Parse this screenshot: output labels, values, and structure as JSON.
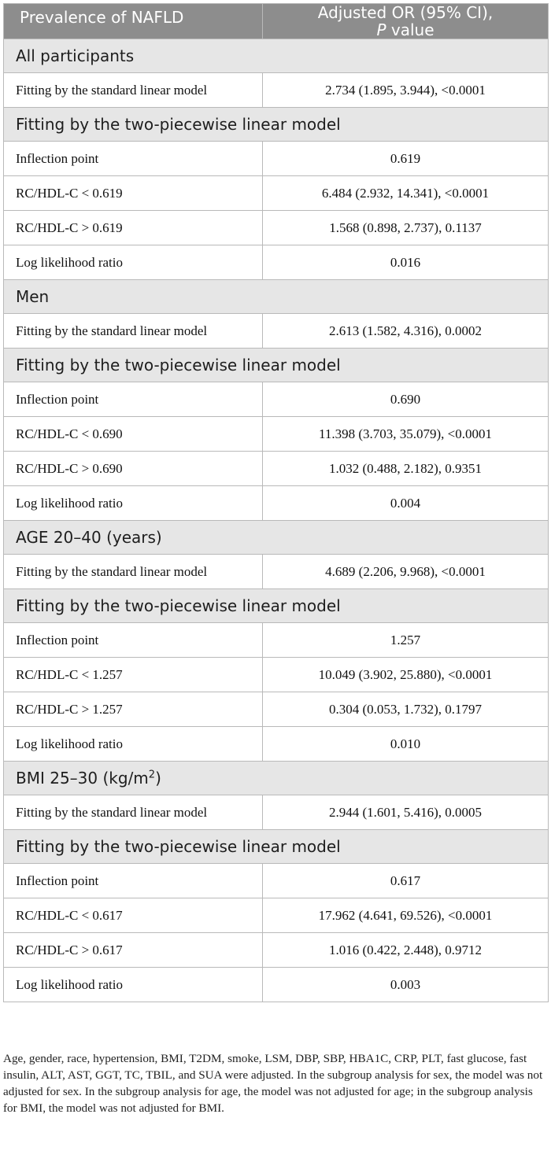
{
  "header": {
    "col1": "Prevalence of NAFLD",
    "col2_line1": "Adjusted OR (95% CI),",
    "col2_p": "P",
    "col2_value": " value"
  },
  "sections": [
    {
      "title": "All participants",
      "rows": [
        {
          "label": "Fitting by the standard linear model",
          "value": "2.734 (1.895, 3.944), <0.0001"
        }
      ]
    },
    {
      "title": "Fitting by the two-piecewise linear model",
      "rows": [
        {
          "label": "Inflection point",
          "value": "0.619"
        },
        {
          "label": "RC/HDL-C < 0.619",
          "value": "6.484 (2.932, 14.341), <0.0001"
        },
        {
          "label": "RC/HDL-C > 0.619",
          "value": "1.568 (0.898, 2.737), 0.1137"
        },
        {
          "label": "Log likelihood ratio",
          "value": "0.016"
        }
      ]
    },
    {
      "title": "Men",
      "rows": [
        {
          "label": "Fitting by the standard linear model",
          "value": "2.613 (1.582, 4.316), 0.0002"
        }
      ]
    },
    {
      "title": "Fitting by the two-piecewise linear model",
      "rows": [
        {
          "label": "Inflection point",
          "value": "0.690"
        },
        {
          "label": "RC/HDL-C < 0.690",
          "value": "11.398 (3.703, 35.079), <0.0001"
        },
        {
          "label": "RC/HDL-C > 0.690",
          "value": "1.032 (0.488, 2.182), 0.9351"
        },
        {
          "label": "Log likelihood ratio",
          "value": "0.004"
        }
      ]
    },
    {
      "title": "AGE 20–40 (years)",
      "rows": [
        {
          "label": "Fitting by the standard linear model",
          "value": "4.689 (2.206, 9.968), <0.0001"
        }
      ]
    },
    {
      "title": "Fitting by the two-piecewise linear model",
      "rows": [
        {
          "label": "Inflection point",
          "value": "1.257"
        },
        {
          "label": "RC/HDL-C < 1.257",
          "value": "10.049 (3.902, 25.880), <0.0001"
        },
        {
          "label": "RC/HDL-C > 1.257",
          "value": "0.304 (0.053, 1.732), 0.1797"
        },
        {
          "label": "Log likelihood ratio",
          "value": "0.010"
        }
      ]
    },
    {
      "title": "BMI 25–30 (kg/m",
      "title_sup": "2",
      "title_tail": ")",
      "rows": [
        {
          "label": "Fitting by the standard linear model",
          "value": "2.944 (1.601, 5.416), 0.0005"
        }
      ]
    },
    {
      "title": "Fitting by the two-piecewise linear model",
      "rows": [
        {
          "label": "Inflection point",
          "value": "0.617"
        },
        {
          "label": "RC/HDL-C < 0.617",
          "value": "17.962 (4.641, 69.526), <0.0001"
        },
        {
          "label": "RC/HDL-C > 0.617",
          "value": "1.016 (0.422, 2.448), 0.9712"
        },
        {
          "label": "Log likelihood ratio",
          "value": "0.003"
        }
      ]
    }
  ],
  "footnote": "Age, gender, race, hypertension, BMI, T2DM, smoke, LSM, DBP, SBP, HBA1C, CRP, PLT, fast glucose, fast insulin, ALT, AST, GGT, TC, TBIL, and SUA were adjusted. In the subgroup analysis for sex, the model was not adjusted for sex. In the subgroup analysis for age, the model was not adjusted for age; in the subgroup analysis for BMI, the model was not adjusted for BMI."
}
